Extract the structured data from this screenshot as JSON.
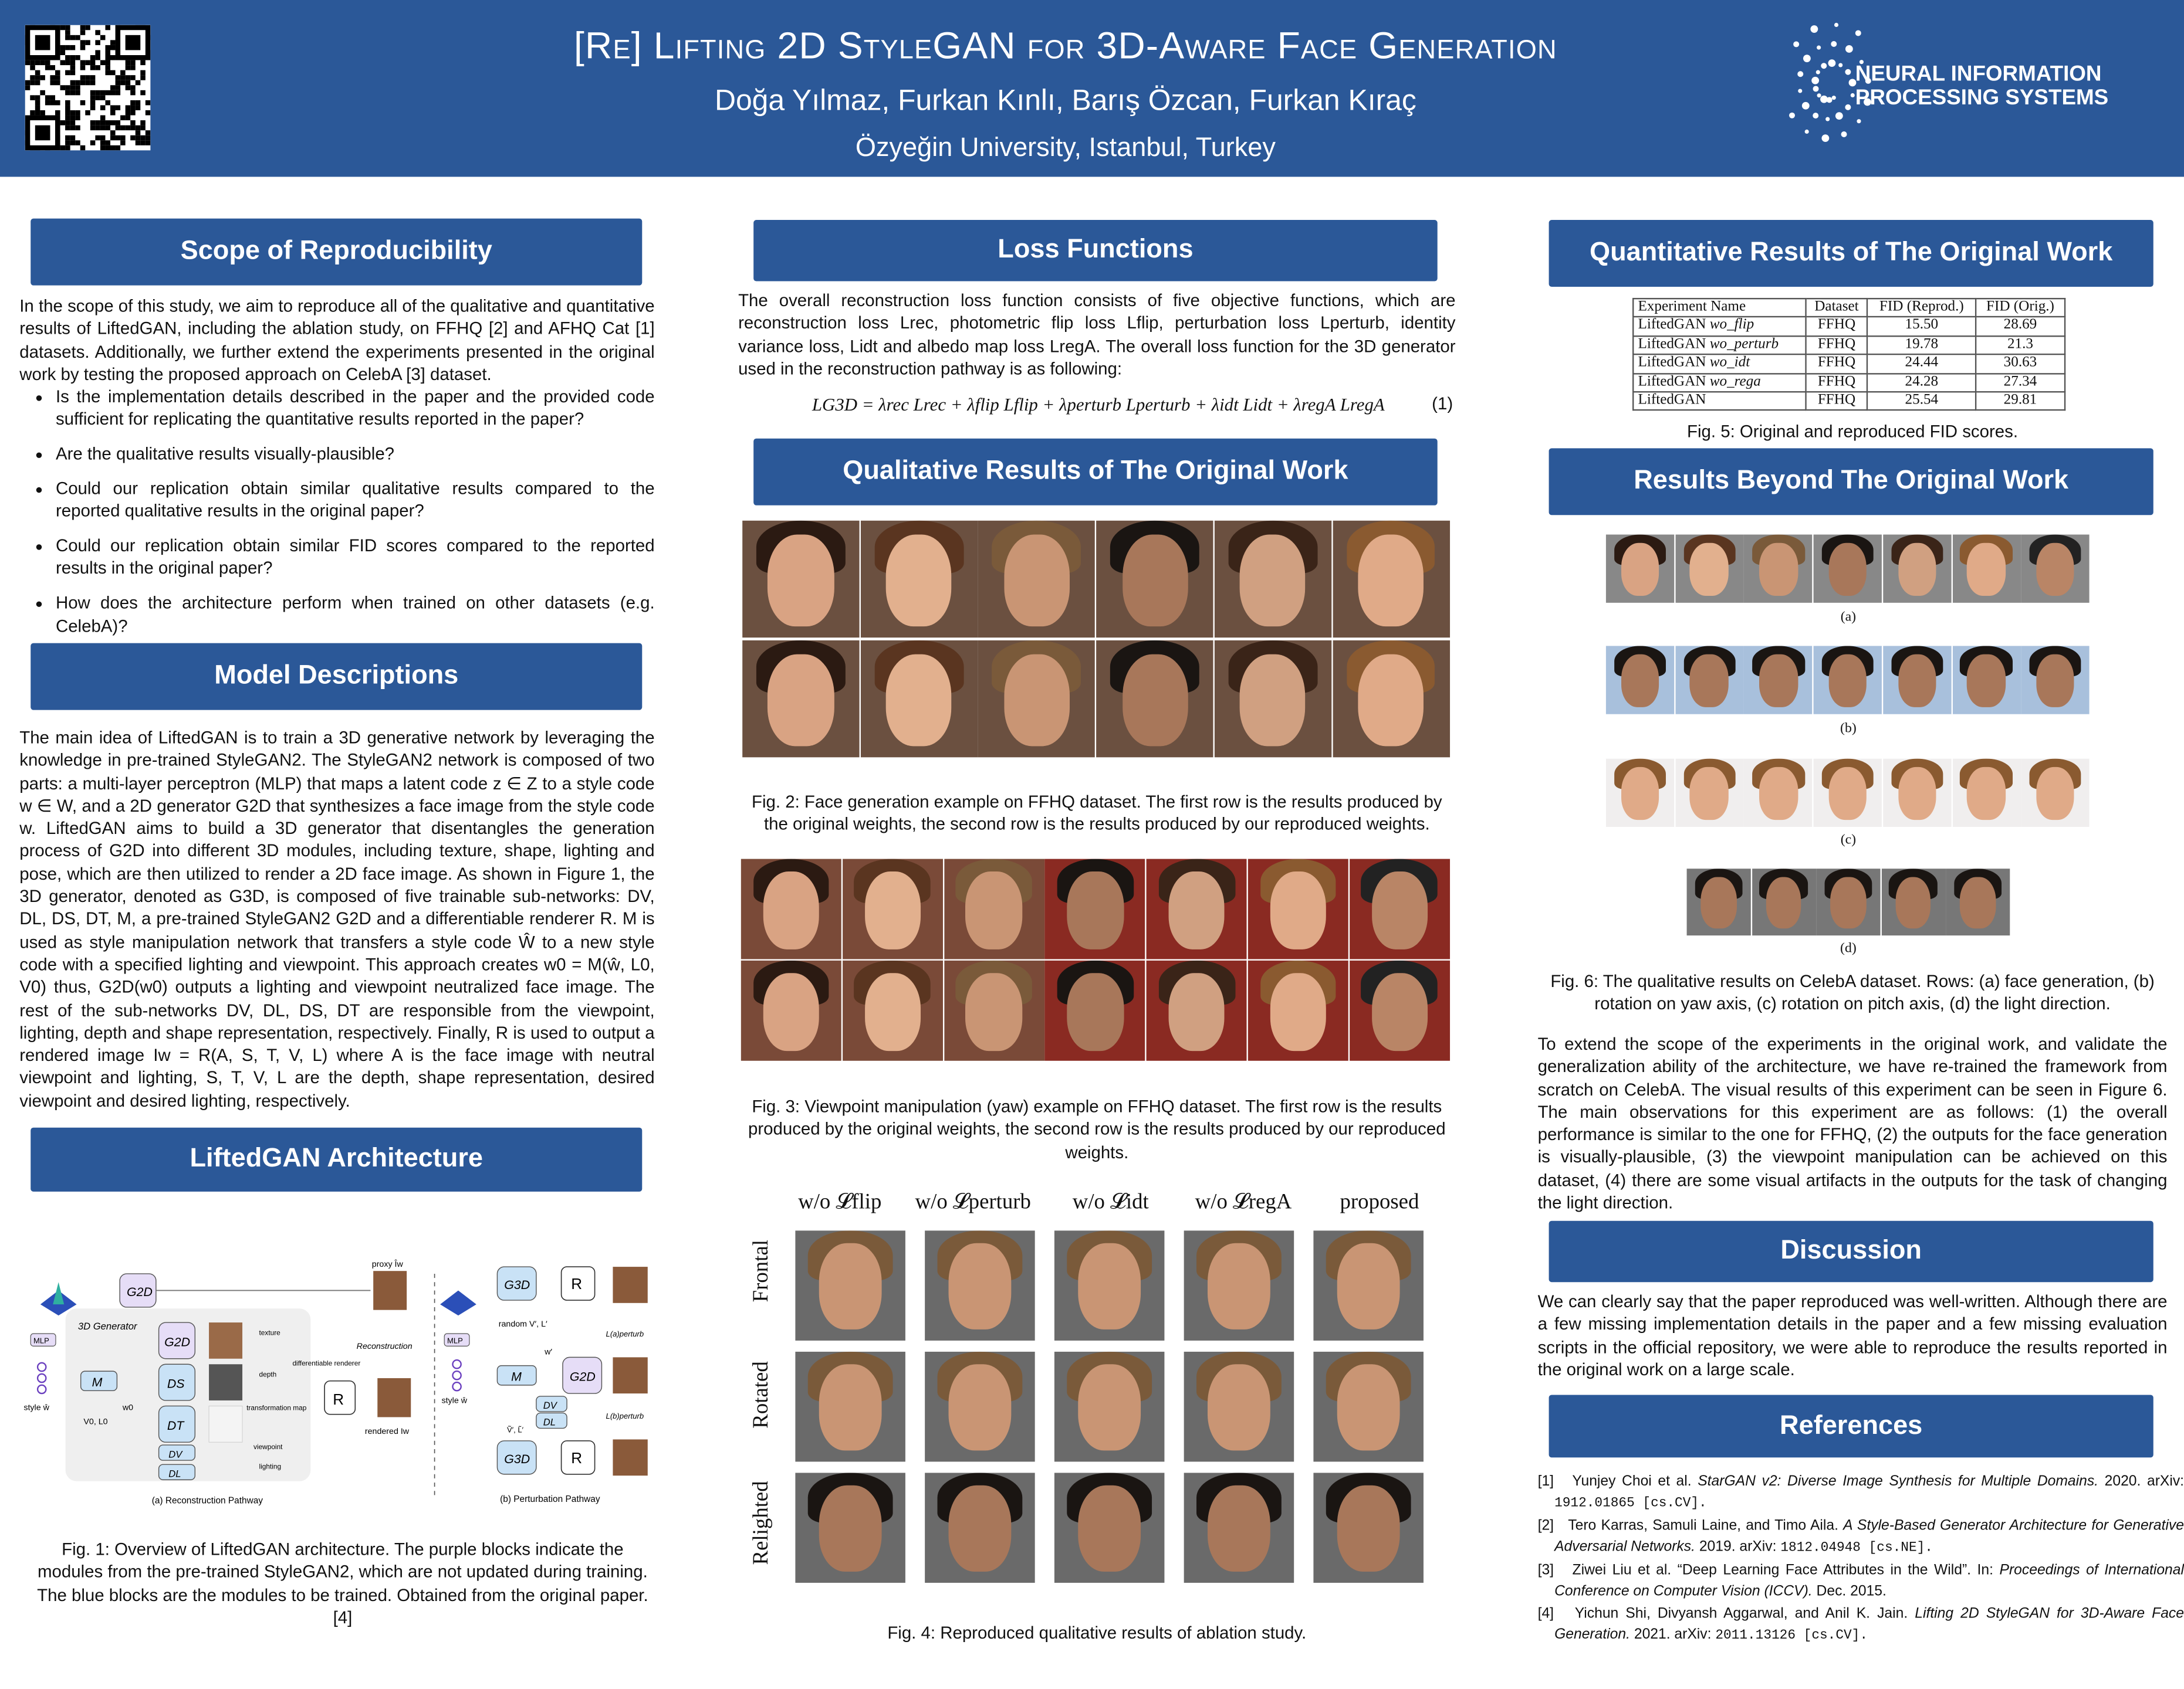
{
  "header": {
    "title": "[Re] Lifting 2D StyleGAN for 3D-Aware Face Generation",
    "authors": "Doğa Yılmaz, Furkan Kınlı, Barış Özcan, Furkan Kıraç",
    "affiliation": "Özyeğin University, Istanbul, Turkey",
    "logo_text": "NEURAL INFORMATION PROCESSING SYSTEMS",
    "colors": {
      "brand_blue": "#2b5898"
    }
  },
  "scope": {
    "heading": "Scope of Reproducibility",
    "intro": "In the scope of this study, we aim to reproduce all of the qualitative and quantitative results of LiftedGAN, including the ablation study, on FFHQ [2] and AFHQ Cat [1] datasets. Additionally, we further extend the experiments presented in the original work by testing the proposed approach on CelebA [3] dataset.",
    "bullets": [
      "Is the implementation details described in the paper and the provided code sufficient for replicating the quantitative results reported in the paper?",
      "Are the qualitative results visually-plausible?",
      "Could our replication obtain similar qualitative results compared to the reported qualitative results in the original paper?",
      "Could our replication obtain similar FID scores compared to the reported results in the original paper?",
      "How does the architecture perform when trained on other datasets (e.g. CelebA)?"
    ]
  },
  "model": {
    "heading": "Model Descriptions",
    "text": "The main idea of LiftedGAN is to train a 3D generative network by leveraging the knowledge in pre-trained StyleGAN2. The StyleGAN2 network is composed of two parts: a multi-layer perceptron (MLP) that maps a latent code z ∈ Z to a style code w ∈ W, and a 2D generator G2D that synthesizes a face image from the style code w. LiftedGAN aims to build a 3D generator that disentangles the generation process of G2D into different 3D modules, including texture, shape, lighting and pose, which are then utilized to render a 2D face image. As shown in Figure 1, the 3D generator, denoted as G3D, is composed of five trainable sub-networks: DV, DL, DS, DT, M, a pre-trained StyleGAN2 G2D and a differentiable renderer R. M is used as style manipulation network that transfers a style code Ŵ to a new style code with a specified lighting and viewpoint. This approach creates w0 = M(ŵ, L0, V0) thus, G2D(w0) outputs a lighting and viewpoint neutralized face image. The rest of the sub-networks DV, DL, DS, DT are responsible from the viewpoint, lighting, depth and shape representation, respectively. Finally, R is used to output a rendered image Iw = R(A, S, T, V, L) where A is the face image with neutral viewpoint and lighting, S, T, V, L are the depth, shape representation, desired viewpoint and desired lighting, respectively."
  },
  "architecture": {
    "heading": "LiftedGAN Architecture",
    "diagram": {
      "g2d": "G2D",
      "g3d": "G3D",
      "mlp": "MLP",
      "m": "M",
      "ds": "DS",
      "dt": "DT",
      "dv": "DV",
      "dl": "DL",
      "r": "R",
      "generator_3d": "3D Generator",
      "style": "style ŵ",
      "w0": "w0",
      "v0l0": "V0, L0",
      "texture": "texture",
      "depth": "depth",
      "transformation_map": "transformation map",
      "viewpoint": "viewpoint",
      "lighting": "lighting",
      "differentiable_renderer": "differentiable renderer",
      "proxy": "proxy Îw",
      "reconstruction": "Reconstruction",
      "rendered": "rendered Iw",
      "random": "random V′, L′",
      "w_prime": "w′",
      "vl_tilde": "Ṽ′, L̃′",
      "perturb_a": "L(a)perturb",
      "perturb_b": "L(b)perturb",
      "caption_a": "(a) Reconstruction Pathway",
      "caption_b": "(b) Perturbation Pathway"
    },
    "caption": "Fig. 1: Overview of LiftedGAN architecture. The purple blocks indicate the modules from the pre-trained StyleGAN2, which are not updated during training. The blue blocks are the modules to be trained. Obtained from the original paper.[4]"
  },
  "loss": {
    "heading": "Loss Functions",
    "text": "The overall reconstruction loss function consists of five objective functions, which are reconstruction loss Lrec, photometric flip loss Lflip, perturbation loss Lperturb, identity variance loss, Lidt and albedo map loss LregA. The overall loss function for the 3D generator used in the reconstruction pathway is as following:",
    "equation": "LG3D = λrec Lrec + λflip Lflip + λperturb Lperturb + λidt Lidt + λregA LregA",
    "equation_number": "(1)"
  },
  "qualitative": {
    "heading": "Qualitative Results of The Original Work",
    "fig2_caption": "Fig. 2: Face generation example on FFHQ dataset. The first row is the results produced by the original weights, the second row is the results produced by our reproduced weights.",
    "fig3_caption": "Fig. 3: Viewpoint manipulation (yaw) example on FFHQ dataset. The first row is the results produced by the original weights, the second row is the results produced by our reproduced weights.",
    "ablation_columns": [
      "w/o 𝓛flip",
      "w/o 𝓛perturb",
      "w/o 𝓛idt",
      "w/o 𝓛regA",
      "proposed"
    ],
    "ablation_rows": [
      "Frontal",
      "Rotated",
      "Relighted"
    ],
    "fig4_caption": "Fig. 4: Reproduced qualitative results of ablation study."
  },
  "quantitative": {
    "heading": "Quantitative Results of The Original Work",
    "table": {
      "columns": [
        "Experiment Name",
        "Dataset",
        "FID (Reprod.)",
        "FID (Orig.)"
      ],
      "rows": [
        {
          "name": "LiftedGAN",
          "variant": "wo_flip",
          "dataset": "FFHQ",
          "reprod": "15.50",
          "orig": "28.69"
        },
        {
          "name": "LiftedGAN",
          "variant": "wo_perturb",
          "dataset": "FFHQ",
          "reprod": "19.78",
          "orig": "21.3"
        },
        {
          "name": "LiftedGAN",
          "variant": "wo_idt",
          "dataset": "FFHQ",
          "reprod": "24.44",
          "orig": "30.63"
        },
        {
          "name": "LiftedGAN",
          "variant": "wo_rega",
          "dataset": "FFHQ",
          "reprod": "24.28",
          "orig": "27.34"
        },
        {
          "name": "LiftedGAN",
          "variant": "",
          "dataset": "FFHQ",
          "reprod": "25.54",
          "orig": "29.81"
        }
      ]
    },
    "caption": "Fig. 5: Original and reproduced FID scores."
  },
  "beyond": {
    "heading": "Results Beyond The Original Work",
    "row_labels": [
      "(a)",
      "(b)",
      "(c)",
      "(d)"
    ],
    "fig6_caption": "Fig. 6: The qualitative results on CelebA dataset. Rows: (a) face generation, (b) rotation on yaw axis, (c) rotation on pitch axis, (d) the light direction.",
    "text": "To extend the scope of the experiments in the original work, and validate the generalization ability of the architecture, we have re-trained the framework from scratch on CelebA. The visual results of this experiment can be seen in Figure 6. The main observations for this experiment are as follows: (1) the overall performance is similar to the one for FFHQ, (2) the outputs for the face generation is visually-plausible, (3) the viewpoint manipulation can be achieved on this dataset, (4) there are some visual artifacts in the outputs for the task of changing the light direction."
  },
  "discussion": {
    "heading": "Discussion",
    "text": "We can clearly say that the paper reproduced was well-written. Although there are a few missing implementation details in the paper and a few missing evaluation scripts in the official repository, we were able to reproduce the results reported in the original work on a large scale."
  },
  "references": {
    "heading": "References",
    "items": [
      {
        "num": "[1]",
        "authors": "Yunjey Choi et al.",
        "title": "StarGAN v2: Diverse Image Synthesis for Multiple Domains.",
        "rest": "2020. arXiv:",
        "arxiv": "1912.01865 [cs.CV]."
      },
      {
        "num": "[2]",
        "authors": "Tero Karras, Samuli Laine, and Timo Aila.",
        "title": "A Style-Based Generator Architecture for Generative Adversarial Networks.",
        "rest": "2019. arXiv:",
        "arxiv": "1812.04948 [cs.NE]."
      },
      {
        "num": "[3]",
        "authors": "Ziwei Liu et al. “Deep Learning Face Attributes in the Wild”. In:",
        "title": "Proceedings of International Conference on Computer Vision (ICCV).",
        "rest": "Dec. 2015.",
        "arxiv": ""
      },
      {
        "num": "[4]",
        "authors": "Yichun Shi, Divyansh Aggarwal, and Anil K. Jain.",
        "title": "Lifting 2D StyleGAN for 3D-Aware Face Generation.",
        "rest": "2021. arXiv:",
        "arxiv": "2011.13126 [cs.CV]."
      }
    ]
  }
}
